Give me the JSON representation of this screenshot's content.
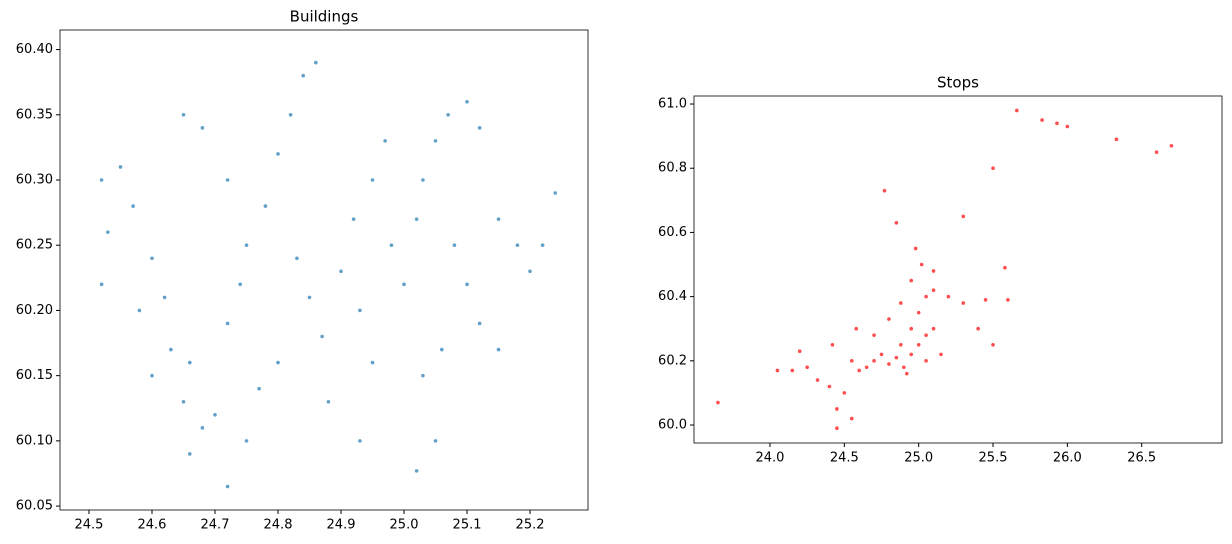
{
  "chart_data": [
    {
      "type": "scatter",
      "title": "Buildings",
      "color": "#1f77b4",
      "xlim": [
        24.454,
        25.292
      ],
      "ylim": [
        60.047,
        60.415
      ],
      "xticks": [
        24.5,
        24.6,
        24.7,
        24.8,
        24.9,
        {
          "value": 25,
          "label": "25.0"
        },
        25.1,
        25.2
      ],
      "yticks": [
        60.05,
        {
          "value": 60.1,
          "label": "60.10"
        },
        60.15,
        {
          "value": 60.2,
          "label": "60.20"
        },
        60.25,
        {
          "value": 60.3,
          "label": "60.30"
        },
        60.35,
        {
          "value": 60.4,
          "label": "60.40"
        }
      ],
      "x": [
        24.52,
        24.53,
        24.55,
        24.57,
        24.52,
        24.58,
        24.6,
        24.62,
        24.63,
        24.66,
        24.65,
        24.68,
        24.66,
        24.7,
        24.72,
        24.74,
        24.75,
        24.72,
        24.68,
        24.65,
        24.78,
        24.8,
        24.82,
        24.84,
        24.86,
        24.83,
        24.85,
        24.87,
        24.8,
        24.77,
        24.75,
        24.9,
        24.92,
        24.93,
        24.95,
        24.95,
        24.97,
        24.98,
        25.0,
        25.02,
        25.03,
        25.05,
        25.07,
        25.1,
        25.12,
        25.08,
        25.1,
        25.12,
        25.06,
        25.03,
        25.15,
        25.18,
        25.2,
        25.22,
        25.24,
        25.15,
        25.05,
        24.72,
        25.02,
        24.93,
        24.6,
        24.88
      ],
      "y": [
        60.3,
        60.26,
        60.31,
        60.28,
        60.22,
        60.2,
        60.24,
        60.21,
        60.17,
        60.16,
        60.13,
        60.11,
        60.09,
        60.12,
        60.19,
        60.22,
        60.25,
        60.3,
        60.34,
        60.35,
        60.28,
        60.32,
        60.35,
        60.38,
        60.39,
        60.24,
        60.21,
        60.18,
        60.16,
        60.14,
        60.1,
        60.23,
        60.27,
        60.2,
        60.16,
        60.3,
        60.33,
        60.25,
        60.22,
        60.27,
        60.3,
        60.33,
        60.35,
        60.36,
        60.34,
        60.25,
        60.22,
        60.19,
        60.17,
        60.15,
        60.27,
        60.25,
        60.23,
        60.25,
        60.29,
        60.17,
        60.1,
        60.065,
        60.077,
        60.1,
        60.15,
        60.13
      ]
    },
    {
      "type": "scatter",
      "title": "Stops",
      "color": "#ff0000",
      "xlim": [
        23.489,
        27.04
      ],
      "ylim": [
        59.944,
        61.025
      ],
      "xticks": [
        {
          "value": 24,
          "label": "24.0"
        },
        24.5,
        {
          "value": 25,
          "label": "25.0"
        },
        25.5,
        {
          "value": 26,
          "label": "26.0"
        },
        26.5
      ],
      "yticks": [
        {
          "value": 60,
          "label": "60.0"
        },
        60.2,
        60.4,
        60.6,
        60.8,
        {
          "value": 61,
          "label": "61.0"
        }
      ],
      "x": [
        23.65,
        25.66,
        25.83,
        25.93,
        26.0,
        26.33,
        26.6,
        26.7,
        24.77,
        25.5,
        24.85,
        25.3,
        25.58,
        24.45,
        24.05,
        24.15,
        24.25,
        24.2,
        24.32,
        24.4,
        24.45,
        24.5,
        24.55,
        24.42,
        24.55,
        24.6,
        24.65,
        24.7,
        24.75,
        24.8,
        24.85,
        24.88,
        24.9,
        24.95,
        25.0,
        25.05,
        25.1,
        24.95,
        25.0,
        25.05,
        25.1,
        24.95,
        24.98,
        25.02,
        25.1,
        25.2,
        25.3,
        25.45,
        25.6,
        25.4,
        25.5,
        25.15,
        25.05,
        24.92,
        24.7,
        24.8,
        24.88,
        24.58
      ],
      "y": [
        60.07,
        60.98,
        60.95,
        60.94,
        60.93,
        60.89,
        60.85,
        60.87,
        60.73,
        60.8,
        60.63,
        60.65,
        60.49,
        59.99,
        60.17,
        60.17,
        60.18,
        60.23,
        60.14,
        60.12,
        60.05,
        60.1,
        60.02,
        60.25,
        60.2,
        60.17,
        60.18,
        60.2,
        60.22,
        60.19,
        60.21,
        60.25,
        60.18,
        60.22,
        60.25,
        60.28,
        60.3,
        60.3,
        60.35,
        60.4,
        60.42,
        60.45,
        60.55,
        60.5,
        60.48,
        60.4,
        60.38,
        60.39,
        60.39,
        60.3,
        60.25,
        60.22,
        60.2,
        60.16,
        60.28,
        60.33,
        60.38,
        60.3
      ]
    }
  ]
}
